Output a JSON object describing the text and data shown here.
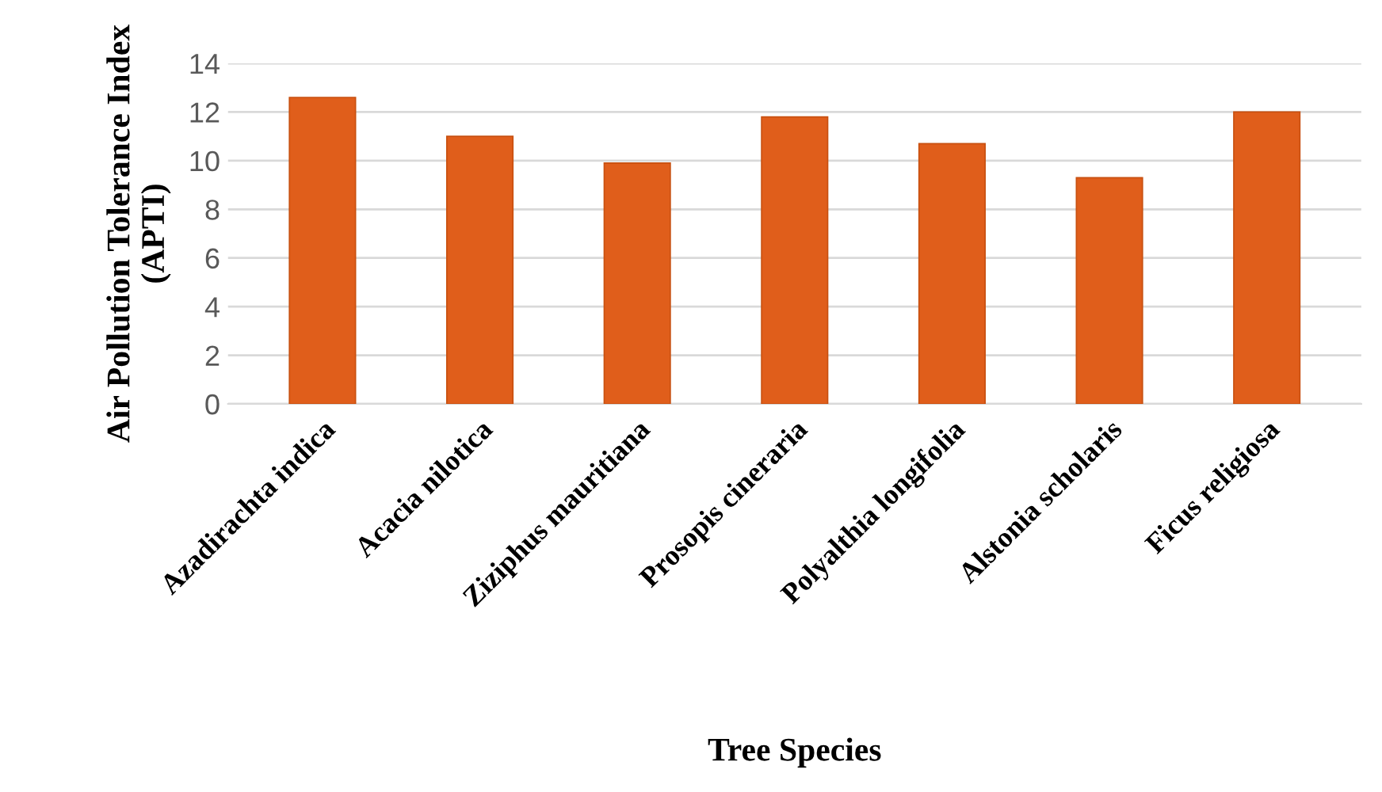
{
  "chart_data": {
    "type": "bar",
    "xlabel": "Tree Species",
    "ylabel": "Air Pollution Tolerance Index\n(APTI)",
    "categories": [
      "Azadirachta indica",
      "Acacia nilotica",
      "Ziziphus mauritiana",
      "Prosopis cineraria",
      "Polyalthia longifolia",
      "Alstonia scholaris",
      "Ficus religiosa"
    ],
    "values": [
      12.6,
      11.0,
      9.9,
      11.8,
      10.7,
      9.3,
      12.0
    ],
    "color": "#e05e1b",
    "ylim": [
      0,
      14
    ],
    "yticks": [
      0,
      2,
      4,
      6,
      8,
      10,
      12,
      14
    ],
    "grid": "y"
  }
}
